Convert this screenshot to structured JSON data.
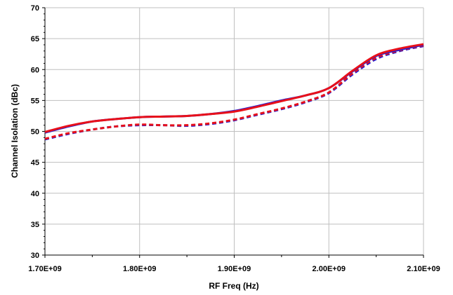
{
  "chart_data": {
    "type": "line",
    "title": "",
    "xlabel": "RF Freq (Hz)",
    "ylabel": "Channel Isolation (dBc)",
    "xlim": [
      1700000000,
      2100000000
    ],
    "ylim": [
      30,
      70
    ],
    "x_ticks": [
      1700000000,
      1800000000,
      1900000000,
      2000000000,
      2100000000
    ],
    "x_tick_labels": [
      "1.70E+09",
      "1.80E+09",
      "1.90E+09",
      "2.00E+09",
      "2.10E+09"
    ],
    "y_ticks": [
      30,
      35,
      40,
      45,
      50,
      55,
      60,
      65,
      70
    ],
    "y_tick_labels": [
      "30",
      "35",
      "40",
      "45",
      "50",
      "55",
      "60",
      "65",
      "70"
    ],
    "grid": true,
    "legend": "none",
    "x": [
      1700000000,
      1725000000,
      1750000000,
      1775000000,
      1800000000,
      1825000000,
      1850000000,
      1875000000,
      1900000000,
      1925000000,
      1950000000,
      1975000000,
      2000000000,
      2025000000,
      2050000000,
      2075000000,
      2100000000
    ],
    "series": [
      {
        "color": "#1f1fd6",
        "style": "solid",
        "values": [
          49.8,
          50.8,
          51.6,
          52.0,
          52.3,
          52.4,
          52.5,
          52.8,
          53.3,
          54.1,
          55.0,
          55.8,
          57.0,
          59.7,
          62.2,
          63.2,
          64.0
        ]
      },
      {
        "color": "#e8101a",
        "style": "solid",
        "values": [
          49.9,
          50.9,
          51.6,
          52.0,
          52.3,
          52.4,
          52.5,
          52.8,
          53.2,
          54.0,
          54.9,
          55.8,
          57.0,
          59.8,
          62.3,
          63.4,
          64.1
        ]
      },
      {
        "color": "#1f1fd6",
        "style": "dashed",
        "values": [
          48.7,
          49.6,
          50.3,
          50.8,
          51.0,
          51.0,
          50.9,
          51.2,
          51.8,
          52.7,
          53.6,
          54.7,
          56.2,
          59.2,
          61.7,
          63.0,
          63.8
        ]
      },
      {
        "color": "#e8101a",
        "style": "dashed",
        "values": [
          48.8,
          49.7,
          50.3,
          50.8,
          51.1,
          51.0,
          51.0,
          51.3,
          51.9,
          52.8,
          53.7,
          54.8,
          56.3,
          59.4,
          61.9,
          63.1,
          63.9
        ]
      }
    ]
  }
}
